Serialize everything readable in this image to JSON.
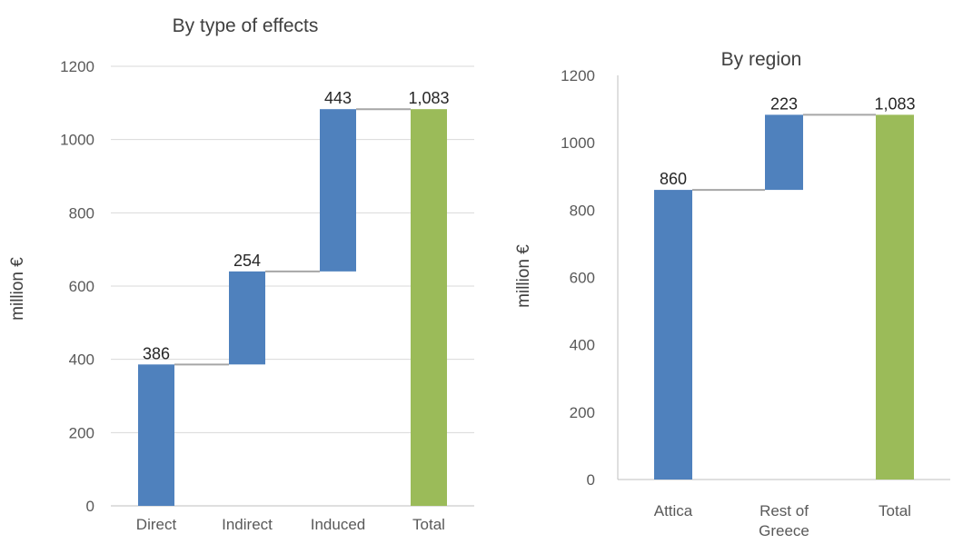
{
  "chart_data": [
    {
      "type": "bar",
      "subtype": "waterfall",
      "title": "By type of effects",
      "ylabel": "million €",
      "ylim": [
        0,
        1200
      ],
      "yticks": [
        0,
        200,
        400,
        600,
        800,
        1000,
        1200
      ],
      "grid": true,
      "categories": [
        "Direct",
        "Indirect",
        "Induced",
        "Total"
      ],
      "values": [
        386,
        254,
        443,
        1083
      ],
      "labels": [
        "386",
        "254",
        "443",
        "1,083"
      ],
      "bases": [
        0,
        386,
        640,
        0
      ],
      "colors": [
        "#4f81bd",
        "#4f81bd",
        "#4f81bd",
        "#9bbb59"
      ]
    },
    {
      "type": "bar",
      "subtype": "waterfall",
      "title": "By region",
      "ylabel": "million €",
      "ylim": [
        0,
        1200
      ],
      "yticks": [
        0,
        200,
        400,
        600,
        800,
        1000,
        1200
      ],
      "grid": false,
      "categories": [
        "Attica",
        "Rest of\nGreece",
        "Total"
      ],
      "values": [
        860,
        223,
        1083
      ],
      "labels": [
        "860",
        "223",
        "1,083"
      ],
      "bases": [
        0,
        860,
        0
      ],
      "colors": [
        "#4f81bd",
        "#4f81bd",
        "#9bbb59"
      ]
    }
  ]
}
